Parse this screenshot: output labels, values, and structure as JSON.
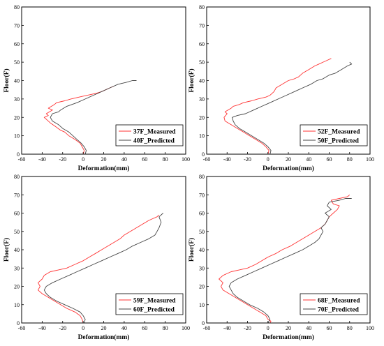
{
  "chart_data": [
    {
      "type": "line",
      "xlabel": "Deformation(mm)",
      "ylabel": "Floor(F)",
      "xlim": [
        -60,
        100
      ],
      "ylim": [
        0,
        80
      ],
      "xticks": [
        -60,
        -40,
        -20,
        0,
        20,
        40,
        60,
        80,
        100
      ],
      "yticks": [
        0,
        10,
        20,
        30,
        40,
        50,
        60,
        70,
        80
      ],
      "grid": false,
      "legend_position": "bottom-right",
      "series": [
        {
          "name": "37F_Measured",
          "color": "#ff3333",
          "points": [
            [
              0,
              0
            ],
            [
              1,
              2
            ],
            [
              -1,
              4
            ],
            [
              -3,
              6
            ],
            [
              -8,
              8
            ],
            [
              -14,
              10
            ],
            [
              -18,
              12
            ],
            [
              -22,
              13
            ],
            [
              -27,
              15
            ],
            [
              -32,
              17
            ],
            [
              -36,
              19
            ],
            [
              -38,
              20
            ],
            [
              -34,
              21
            ],
            [
              -36,
              22
            ],
            [
              -30,
              24
            ],
            [
              -34,
              25
            ],
            [
              -28,
              27
            ],
            [
              -26,
              28
            ],
            [
              -18,
              29
            ],
            [
              -12,
              30
            ],
            [
              -4,
              31
            ],
            [
              4,
              32
            ],
            [
              12,
              33
            ],
            [
              18,
              34
            ],
            [
              22,
              35
            ],
            [
              26,
              36
            ],
            [
              30,
              37
            ]
          ]
        },
        {
          "name": "40F_Predicted",
          "color": "#444444",
          "points": [
            [
              2,
              0
            ],
            [
              3,
              2
            ],
            [
              1,
              4
            ],
            [
              -2,
              6
            ],
            [
              -6,
              8
            ],
            [
              -10,
              10
            ],
            [
              -14,
              12
            ],
            [
              -20,
              14
            ],
            [
              -24,
              16
            ],
            [
              -30,
              18
            ],
            [
              -32,
              20
            ],
            [
              -30,
              22
            ],
            [
              -24,
              23
            ],
            [
              -22,
              24
            ],
            [
              -16,
              26
            ],
            [
              -6,
              28
            ],
            [
              2,
              30
            ],
            [
              10,
              32
            ],
            [
              18,
              34
            ],
            [
              26,
              36
            ],
            [
              34,
              38
            ],
            [
              42,
              39
            ],
            [
              48,
              40
            ],
            [
              52,
              40
            ]
          ]
        }
      ]
    },
    {
      "type": "line",
      "xlabel": "Deformation(mm)",
      "ylabel": "Floor(F)",
      "xlim": [
        -60,
        100
      ],
      "ylim": [
        0,
        80
      ],
      "xticks": [
        -60,
        -40,
        -20,
        0,
        20,
        40,
        60,
        80,
        100
      ],
      "yticks": [
        0,
        10,
        20,
        30,
        40,
        50,
        60,
        70,
        80
      ],
      "grid": false,
      "legend_position": "bottom-right",
      "series": [
        {
          "name": "52F_Measured",
          "color": "#ff3333",
          "points": [
            [
              0,
              0
            ],
            [
              1,
              2
            ],
            [
              -2,
              4
            ],
            [
              -6,
              6
            ],
            [
              -12,
              8
            ],
            [
              -18,
              10
            ],
            [
              -24,
              12
            ],
            [
              -30,
              14
            ],
            [
              -36,
              16
            ],
            [
              -42,
              18
            ],
            [
              -43,
              20
            ],
            [
              -40,
              22
            ],
            [
              -42,
              23
            ],
            [
              -36,
              25
            ],
            [
              -34,
              26
            ],
            [
              -28,
              27
            ],
            [
              -24,
              28
            ],
            [
              -16,
              29
            ],
            [
              -10,
              30
            ],
            [
              -2,
              31
            ],
            [
              2,
              32
            ],
            [
              6,
              34
            ],
            [
              8,
              36
            ],
            [
              14,
              38
            ],
            [
              20,
              40
            ],
            [
              26,
              41
            ],
            [
              30,
              42
            ],
            [
              34,
              44
            ],
            [
              40,
              46
            ],
            [
              46,
              48
            ],
            [
              50,
              49
            ],
            [
              54,
              50
            ],
            [
              58,
              51
            ],
            [
              62,
              52
            ]
          ]
        },
        {
          "name": "50F_Predicted",
          "color": "#444444",
          "points": [
            [
              2,
              0
            ],
            [
              3,
              2
            ],
            [
              0,
              4
            ],
            [
              -4,
              6
            ],
            [
              -10,
              8
            ],
            [
              -16,
              10
            ],
            [
              -22,
              12
            ],
            [
              -28,
              14
            ],
            [
              -32,
              16
            ],
            [
              -34,
              18
            ],
            [
              -35,
              20
            ],
            [
              -30,
              21
            ],
            [
              -22,
              22
            ],
            [
              -14,
              24
            ],
            [
              -6,
              26
            ],
            [
              2,
              28
            ],
            [
              10,
              30
            ],
            [
              18,
              32
            ],
            [
              26,
              34
            ],
            [
              34,
              36
            ],
            [
              42,
              38
            ],
            [
              48,
              40
            ],
            [
              54,
              41
            ],
            [
              60,
              43
            ],
            [
              66,
              44
            ],
            [
              72,
              46
            ],
            [
              78,
              48
            ],
            [
              82,
              49
            ],
            [
              80,
              50
            ]
          ]
        }
      ]
    },
    {
      "type": "line",
      "xlabel": "Deformation(mm)",
      "ylabel": "Floor(F)",
      "xlim": [
        -60,
        100
      ],
      "ylim": [
        0,
        80
      ],
      "xticks": [
        -60,
        -40,
        -20,
        0,
        20,
        40,
        60,
        80,
        100
      ],
      "yticks": [
        0,
        10,
        20,
        30,
        40,
        50,
        60,
        70,
        80
      ],
      "grid": false,
      "legend_position": "bottom-right",
      "series": [
        {
          "name": "59F_Measured",
          "color": "#ff3333",
          "points": [
            [
              0,
              0
            ],
            [
              -1,
              2
            ],
            [
              -3,
              4
            ],
            [
              -8,
              6
            ],
            [
              -16,
              8
            ],
            [
              -22,
              10
            ],
            [
              -28,
              12
            ],
            [
              -34,
              14
            ],
            [
              -40,
              16
            ],
            [
              -44,
              18
            ],
            [
              -42,
              20
            ],
            [
              -44,
              22
            ],
            [
              -40,
              24
            ],
            [
              -38,
              26
            ],
            [
              -32,
              28
            ],
            [
              -24,
              29
            ],
            [
              -16,
              30
            ],
            [
              -8,
              32
            ],
            [
              0,
              34
            ],
            [
              6,
              36
            ],
            [
              12,
              38
            ],
            [
              18,
              40
            ],
            [
              24,
              42
            ],
            [
              30,
              44
            ],
            [
              36,
              46
            ],
            [
              40,
              48
            ],
            [
              46,
              50
            ],
            [
              52,
              52
            ],
            [
              58,
              54
            ],
            [
              64,
              56
            ],
            [
              68,
              57
            ],
            [
              72,
              58
            ],
            [
              74,
              59
            ]
          ]
        },
        {
          "name": "60F_Predicted",
          "color": "#444444",
          "points": [
            [
              1,
              0
            ],
            [
              2,
              2
            ],
            [
              0,
              4
            ],
            [
              -3,
              6
            ],
            [
              -10,
              8
            ],
            [
              -18,
              10
            ],
            [
              -26,
              12
            ],
            [
              -32,
              14
            ],
            [
              -36,
              16
            ],
            [
              -38,
              18
            ],
            [
              -36,
              20
            ],
            [
              -30,
              22
            ],
            [
              -22,
              24
            ],
            [
              -14,
              26
            ],
            [
              -6,
              28
            ],
            [
              2,
              30
            ],
            [
              10,
              32
            ],
            [
              18,
              34
            ],
            [
              26,
              36
            ],
            [
              34,
              38
            ],
            [
              42,
              40
            ],
            [
              48,
              42
            ],
            [
              56,
              44
            ],
            [
              64,
              46
            ],
            [
              70,
              48
            ],
            [
              72,
              50
            ],
            [
              74,
              52
            ],
            [
              76,
              55
            ],
            [
              74,
              58
            ],
            [
              78,
              60
            ]
          ]
        }
      ]
    },
    {
      "type": "line",
      "xlabel": "Deformation(mm)",
      "ylabel": "Floor(F)",
      "xlim": [
        -60,
        100
      ],
      "ylim": [
        0,
        80
      ],
      "xticks": [
        -60,
        -40,
        -20,
        0,
        20,
        40,
        60,
        80,
        100
      ],
      "yticks": [
        0,
        10,
        20,
        30,
        40,
        50,
        60,
        70,
        80
      ],
      "grid": false,
      "legend_position": "bottom-right",
      "series": [
        {
          "name": "68F_Measured",
          "color": "#ff3333",
          "points": [
            [
              2,
              0
            ],
            [
              3,
              1
            ],
            [
              0,
              2
            ],
            [
              -2,
              4
            ],
            [
              -8,
              6
            ],
            [
              -14,
              8
            ],
            [
              -20,
              10
            ],
            [
              -26,
              12
            ],
            [
              -32,
              14
            ],
            [
              -38,
              16
            ],
            [
              -44,
              18
            ],
            [
              -46,
              20
            ],
            [
              -44,
              22
            ],
            [
              -48,
              24
            ],
            [
              -44,
              26
            ],
            [
              -40,
              27
            ],
            [
              -36,
              28
            ],
            [
              -28,
              29
            ],
            [
              -20,
              30
            ],
            [
              -12,
              32
            ],
            [
              -6,
              34
            ],
            [
              0,
              36
            ],
            [
              8,
              38
            ],
            [
              14,
              40
            ],
            [
              22,
              42
            ],
            [
              28,
              44
            ],
            [
              34,
              46
            ],
            [
              40,
              48
            ],
            [
              46,
              50
            ],
            [
              52,
              52
            ],
            [
              56,
              54
            ],
            [
              58,
              56
            ],
            [
              60,
              58
            ],
            [
              64,
              60
            ],
            [
              68,
              62
            ],
            [
              70,
              64
            ],
            [
              64,
              65
            ],
            [
              62,
              67
            ],
            [
              70,
              68
            ],
            [
              78,
              69
            ],
            [
              80,
              70
            ]
          ]
        },
        {
          "name": "70F_Predicted",
          "color": "#444444",
          "points": [
            [
              0,
              0
            ],
            [
              2,
              2
            ],
            [
              0,
              4
            ],
            [
              -4,
              6
            ],
            [
              -10,
              8
            ],
            [
              -18,
              10
            ],
            [
              -24,
              12
            ],
            [
              -30,
              14
            ],
            [
              -34,
              16
            ],
            [
              -36,
              18
            ],
            [
              -38,
              20
            ],
            [
              -36,
              22
            ],
            [
              -30,
              24
            ],
            [
              -22,
              26
            ],
            [
              -14,
              28
            ],
            [
              -6,
              30
            ],
            [
              2,
              32
            ],
            [
              10,
              34
            ],
            [
              18,
              36
            ],
            [
              26,
              38
            ],
            [
              34,
              40
            ],
            [
              40,
              42
            ],
            [
              46,
              44
            ],
            [
              50,
              46
            ],
            [
              52,
              48
            ],
            [
              54,
              50
            ],
            [
              52,
              52
            ],
            [
              56,
              54
            ],
            [
              58,
              56
            ],
            [
              60,
              58
            ],
            [
              56,
              60
            ],
            [
              62,
              62
            ],
            [
              58,
              64
            ],
            [
              60,
              66
            ],
            [
              70,
              67
            ],
            [
              76,
              68
            ],
            [
              82,
              68
            ]
          ]
        }
      ]
    }
  ]
}
